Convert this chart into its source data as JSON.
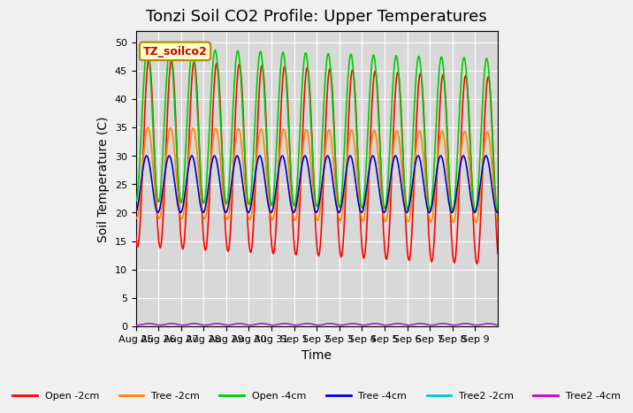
{
  "title": "Tonzi Soil CO2 Profile: Upper Temperatures",
  "xlabel": "Time",
  "ylabel": "Soil Temperature (C)",
  "ylim": [
    0,
    52
  ],
  "yticks": [
    0,
    5,
    10,
    15,
    20,
    25,
    30,
    35,
    40,
    45,
    50
  ],
  "x_labels": [
    "Aug 25",
    "Aug 26",
    "Aug 27",
    "Aug 28",
    "Aug 29",
    "Aug 30",
    "Aug 31",
    "Sep 1",
    "Sep 2",
    "Sep 3",
    "Sep 4",
    "Sep 5",
    "Sep 6",
    "Sep 7",
    "Sep 8",
    "Sep 9"
  ],
  "n_days": 16,
  "series_order": [
    "Open -2cm",
    "Tree -2cm",
    "Open -4cm",
    "Tree -4cm",
    "Tree2 -2cm",
    "Tree2 -4cm"
  ],
  "series": {
    "Open -2cm": {
      "color": "#ff0000",
      "lw": 1.2,
      "amp": 33,
      "min": 14,
      "phase": 0.0,
      "trend": -0.2
    },
    "Tree -2cm": {
      "color": "#ff8800",
      "lw": 1.2,
      "amp": 16,
      "min": 19,
      "phase": 0.04,
      "trend": -0.05
    },
    "Open -4cm": {
      "color": "#00cc00",
      "lw": 1.2,
      "amp": 27,
      "min": 22,
      "phase": 0.07,
      "trend": -0.12
    },
    "Tree -4cm": {
      "color": "#0000cc",
      "lw": 1.2,
      "amp": 10,
      "min": 20,
      "phase": 0.1,
      "trend": 0.0
    },
    "Tree2 -2cm": {
      "color": "#00cccc",
      "lw": 1.0,
      "amp": 0.3,
      "min": 0.2,
      "phase": 0.0,
      "trend": 0.0
    },
    "Tree2 -4cm": {
      "color": "#cc00cc",
      "lw": 1.0,
      "amp": 0.3,
      "min": 0.2,
      "phase": 0.0,
      "trend": 0.0
    }
  },
  "legend_labels": [
    "Open -2cm",
    "Tree -2cm",
    "Open -4cm",
    "Tree -4cm",
    "Tree2 -2cm",
    "Tree2 -4cm"
  ],
  "legend_colors": [
    "#ff0000",
    "#ff8800",
    "#00cc00",
    "#0000cc",
    "#00cccc",
    "#cc00cc"
  ],
  "annotation_text": "TZ_soilco2",
  "bg_color": "#f0f0f0",
  "plot_area_color": "#d8d8d8",
  "title_fontsize": 13,
  "axis_fontsize": 10,
  "tick_fontsize": 8
}
